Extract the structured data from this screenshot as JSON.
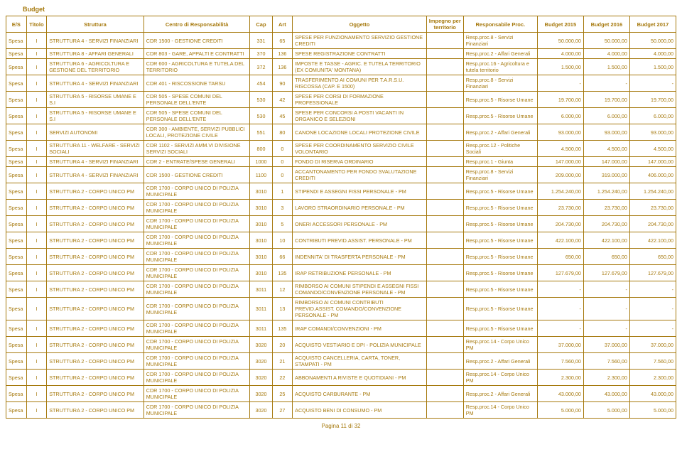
{
  "page_title": "Budget",
  "footer": "Pagina 11 di 32",
  "headers": [
    "E/S",
    "Titolo",
    "Struttura",
    "Centro di Responsabilità",
    "Cap",
    "Art",
    "Oggetto",
    "Impegno per territorio",
    "Responsabile Proc.",
    "Budget 2015",
    "Budget 2016",
    "Budget 2017"
  ],
  "rows": [
    {
      "es": "Spesa",
      "titolo": "I",
      "struttura": "STRUTTURA 4 - SERVIZI FINANZIARI",
      "centro": "CDR 1500 - GESTIONE CREDITI",
      "cap": "331",
      "art": "65",
      "oggetto": "SPESE PER FUNZIONAMENTO SERVIZIO GESTIONE CREDITI",
      "imp": "",
      "resp": "Resp.proc.8 - Servizi Finanziari",
      "b2015": "50.000,00",
      "b2016": "50.000,00",
      "b2017": "50.000,00"
    },
    {
      "es": "Spesa",
      "titolo": "I",
      "struttura": "STRUTTURA 8 - AFFARI GENERALI",
      "centro": "CDR 803 - GARE, APPALTI E CONTRATTI",
      "cap": "370",
      "art": "136",
      "oggetto": "SPESE REGISTRAZIONE CONTRATTI",
      "imp": "",
      "resp": "Resp.proc.2 - Affari Generali",
      "b2015": "4.000,00",
      "b2016": "4.000,00",
      "b2017": "4.000,00"
    },
    {
      "es": "Spesa",
      "titolo": "I",
      "struttura": "STRUTTURA 6 - AGRICOLTURA E GESTIONE DEL TERRITORIO",
      "centro": "CDR 600 - AGRICOLTURA E TUTELA DEL TERRITORIO",
      "cap": "372",
      "art": "136",
      "oggetto": "IMPOSTE E TASSE - AGRIC. E TUTELA TERRITORIO (EX COMUNITA' MONTANA)",
      "imp": "",
      "resp": "Resp.proc.16 - Agricoltura e tutela territorio",
      "b2015": "1.500,00",
      "b2016": "1.500,00",
      "b2017": "1.500,00"
    },
    {
      "es": "Spesa",
      "titolo": "I",
      "struttura": "STRUTTURA 4 - SERVIZI FINANZIARI",
      "centro": "CDR 401 - RISCOSSIONE TARSU",
      "cap": "454",
      "art": "90",
      "oggetto": "TRASFERIMENTO AI COMUNI PER T.A.R.S.U. RISCOSSA (CAP. E 1500)",
      "imp": "",
      "resp": "Resp.proc.8 - Servizi Finanziari",
      "b2015": "-",
      "b2016": "-",
      "b2017": "-"
    },
    {
      "es": "Spesa",
      "titolo": "I",
      "struttura": "STRUTTURA 5 - RISORSE UMANE E S.I",
      "centro": "CDR 505 - SPESE COMUNI DEL PERSONALE DELL'ENTE",
      "cap": "530",
      "art": "42",
      "oggetto": "SPESE PER CORSI DI FORMAZIONE PROFESSIONALE",
      "imp": "",
      "resp": "Resp.proc.5 - Risorse Umane",
      "b2015": "19.700,00",
      "b2016": "19.700,00",
      "b2017": "19.700,00"
    },
    {
      "es": "Spesa",
      "titolo": "I",
      "struttura": "STRUTTURA 5 - RISORSE UMANE E S.I",
      "centro": "CDR 505 - SPESE COMUNI DEL PERSONALE DELL'ENTE",
      "cap": "530",
      "art": "45",
      "oggetto": "SPESE PER CONCORSI A POSTI VACANTI IN ORGANICO E SELEZIONI",
      "imp": "",
      "resp": "Resp.proc.5 - Risorse Umane",
      "b2015": "6.000,00",
      "b2016": "6.000,00",
      "b2017": "6.000,00"
    },
    {
      "es": "Spesa",
      "titolo": "I",
      "struttura": "SERVIZI AUTONOMI",
      "centro": "CDR 300 - AMBIENTE, SERVIZI PUBBLICI LOCALI, PROTEZIONE CIVILE",
      "cap": "551",
      "art": "80",
      "oggetto": "CANONE LOCAZIONE LOCALI PROTEZIONE CIVILE",
      "imp": "",
      "resp": "Resp.proc.2 - Affari Generali",
      "b2015": "93.000,00",
      "b2016": "93.000,00",
      "b2017": "93.000,00"
    },
    {
      "es": "Spesa",
      "titolo": "I",
      "struttura": "STRUTTURA 11 - WELFARE - SERVIZI SOCIALI",
      "centro": "CDR 1102 - SERVIZI AMM.VI DIVISIONE SERVIZI SOCIALI",
      "cap": "800",
      "art": "0",
      "oggetto": "SPESE PER COORDINAMENTO SERVIZIO CIVILE VOLONTARIO",
      "imp": "",
      "resp": "Resp.proc.12 - Politiche Sociali",
      "b2015": "4.500,00",
      "b2016": "4.500,00",
      "b2017": "4.500,00"
    },
    {
      "es": "Spesa",
      "titolo": "I",
      "struttura": "STRUTTURA 4 - SERVIZI FINANZIARI",
      "centro": "CDR 2 - ENTRATE/SPESE GENERALI",
      "cap": "1000",
      "art": "0",
      "oggetto": "FONDO DI RISERVA ORDINARIO",
      "imp": "",
      "resp": "Resp.proc.1 - Giunta",
      "b2015": "147.000,00",
      "b2016": "147.000,00",
      "b2017": "147.000,00"
    },
    {
      "es": "Spesa",
      "titolo": "I",
      "struttura": "STRUTTURA 4 - SERVIZI FINANZIARI",
      "centro": "CDR 1500 - GESTIONE CREDITI",
      "cap": "1100",
      "art": "0",
      "oggetto": "ACCANTONAMENTO PER FONDO SVALUTAZIONE CREDITI",
      "imp": "",
      "resp": "Resp.proc.8 - Servizi Finanziari",
      "b2015": "209.000,00",
      "b2016": "319.000,00",
      "b2017": "406.000,00"
    },
    {
      "es": "Spesa",
      "titolo": "I",
      "struttura": "STRUTTURA 2 - CORPO UNICO PM",
      "centro": "CDR 1700 - CORPO UNICO DI POLIZIA MUNICIPALE",
      "cap": "3010",
      "art": "1",
      "oggetto": "STIPENDI E ASSEGNI FISSI PERSONALE - PM",
      "imp": "",
      "resp": "Resp.proc.5 - Risorse Umane",
      "b2015": "1.254.240,00",
      "b2016": "1.254.240,00",
      "b2017": "1.254.240,00"
    },
    {
      "es": "Spesa",
      "titolo": "I",
      "struttura": "STRUTTURA 2 - CORPO UNICO PM",
      "centro": "CDR 1700 - CORPO UNICO DI POLIZIA MUNICIPALE",
      "cap": "3010",
      "art": "3",
      "oggetto": "LAVORO STRAORDINARIO PERSONALE - PM",
      "imp": "",
      "resp": "Resp.proc.5 - Risorse Umane",
      "b2015": "23.730,00",
      "b2016": "23.730,00",
      "b2017": "23.730,00"
    },
    {
      "es": "Spesa",
      "titolo": "I",
      "struttura": "STRUTTURA 2 - CORPO UNICO PM",
      "centro": "CDR 1700 - CORPO UNICO DI POLIZIA MUNICIPALE",
      "cap": "3010",
      "art": "5",
      "oggetto": "ONERI ACCESSORI PERSONALE - PM",
      "imp": "",
      "resp": "Resp.proc.5 - Risorse Umane",
      "b2015": "204.730,00",
      "b2016": "204.730,00",
      "b2017": "204.730,00"
    },
    {
      "es": "Spesa",
      "titolo": "I",
      "struttura": "STRUTTURA 2 - CORPO UNICO PM",
      "centro": "CDR 1700 - CORPO UNICO DI POLIZIA MUNICIPALE",
      "cap": "3010",
      "art": "10",
      "oggetto": "CONTRIBUTI PREVID.ASSIST. PERSONALE - PM",
      "imp": "",
      "resp": "Resp.proc.5 - Risorse Umane",
      "b2015": "422.100,00",
      "b2016": "422.100,00",
      "b2017": "422.100,00"
    },
    {
      "es": "Spesa",
      "titolo": "I",
      "struttura": "STRUTTURA 2 - CORPO UNICO PM",
      "centro": "CDR 1700 - CORPO UNICO DI POLIZIA MUNICIPALE",
      "cap": "3010",
      "art": "66",
      "oggetto": "INDENNITA' DI TRASFERTA PERSONALE - PM",
      "imp": "",
      "resp": "Resp.proc.5 - Risorse Umane",
      "b2015": "650,00",
      "b2016": "650,00",
      "b2017": "650,00"
    },
    {
      "es": "Spesa",
      "titolo": "I",
      "struttura": "STRUTTURA 2 - CORPO UNICO PM",
      "centro": "CDR 1700 - CORPO UNICO DI POLIZIA MUNICIPALE",
      "cap": "3010",
      "art": "135",
      "oggetto": "IRAP RETRIBUZIONE PERSONALE - PM",
      "imp": "",
      "resp": "Resp.proc.5 - Risorse Umane",
      "b2015": "127.679,00",
      "b2016": "127.679,00",
      "b2017": "127.679,00"
    },
    {
      "es": "Spesa",
      "titolo": "I",
      "struttura": "STRUTTURA 2 - CORPO UNICO PM",
      "centro": "CDR 1700 - CORPO UNICO DI POLIZIA MUNICIPALE",
      "cap": "3011",
      "art": "12",
      "oggetto": "RIMBORSO AI COMUNI STIPENDI E ASSEGNI FISSI COMANDO/CONVENZIONE PERSONALE - PM",
      "imp": "",
      "resp": "Resp.proc.5 - Risorse Umane",
      "b2015": "-",
      "b2016": "-",
      "b2017": "-"
    },
    {
      "es": "Spesa",
      "titolo": "I",
      "struttura": "STRUTTURA 2 - CORPO UNICO PM",
      "centro": "CDR 1700 - CORPO UNICO DI POLIZIA MUNICIPALE",
      "cap": "3011",
      "art": "13",
      "oggetto": "RIMBORSO AI COMUNI CONTRIBUTI PREVID.ASSIST. COMANDO/CONVENZIONE PERSONALE - PM",
      "imp": "",
      "resp": "Resp.proc.5 - Risorse Umane",
      "b2015": "-",
      "b2016": "-",
      "b2017": "-"
    },
    {
      "es": "Spesa",
      "titolo": "I",
      "struttura": "STRUTTURA 2 - CORPO UNICO PM",
      "centro": "CDR 1700 - CORPO UNICO DI POLIZIA MUNICIPALE",
      "cap": "3011",
      "art": "135",
      "oggetto": "IRAP COMANDI/CONVENZIONI - PM",
      "imp": "",
      "resp": "Resp.proc.5 - Risorse Umane",
      "b2015": "-",
      "b2016": "-",
      "b2017": "-"
    },
    {
      "es": "Spesa",
      "titolo": "I",
      "struttura": "STRUTTURA 2 - CORPO UNICO PM",
      "centro": "CDR 1700 - CORPO UNICO DI POLIZIA MUNICIPALE",
      "cap": "3020",
      "art": "20",
      "oggetto": "ACQUISTO VESTIARIO E DPI - POLIZIA MUNICIPALE",
      "imp": "",
      "resp": "Resp.proc.14 - Corpo Unico PM",
      "b2015": "37.000,00",
      "b2016": "37.000,00",
      "b2017": "37.000,00"
    },
    {
      "es": "Spesa",
      "titolo": "I",
      "struttura": "STRUTTURA 2 - CORPO UNICO PM",
      "centro": "CDR 1700 - CORPO UNICO DI POLIZIA MUNICIPALE",
      "cap": "3020",
      "art": "21",
      "oggetto": "ACQUISTO CANCELLERIA, CARTA, TONER, STAMPATI - PM",
      "imp": "",
      "resp": "Resp.proc.2 - Affari Generali",
      "b2015": "7.560,00",
      "b2016": "7.560,00",
      "b2017": "7.560,00"
    },
    {
      "es": "Spesa",
      "titolo": "I",
      "struttura": "STRUTTURA 2 - CORPO UNICO PM",
      "centro": "CDR 1700 - CORPO UNICO DI POLIZIA MUNICIPALE",
      "cap": "3020",
      "art": "22",
      "oggetto": "ABBONAMENTI A RIVISTE E QUOTIDIANI - PM",
      "imp": "",
      "resp": "Resp.proc.14 - Corpo Unico PM",
      "b2015": "2.300,00",
      "b2016": "2.300,00",
      "b2017": "2.300,00"
    },
    {
      "es": "Spesa",
      "titolo": "I",
      "struttura": "STRUTTURA 2 - CORPO UNICO PM",
      "centro": "CDR 1700 - CORPO UNICO DI POLIZIA MUNICIPALE",
      "cap": "3020",
      "art": "25",
      "oggetto": "ACQUISTO CARBURANTE - PM",
      "imp": "",
      "resp": "Resp.proc.2 - Affari Generali",
      "b2015": "43.000,00",
      "b2016": "43.000,00",
      "b2017": "43.000,00"
    },
    {
      "es": "Spesa",
      "titolo": "I",
      "struttura": "STRUTTURA 2 - CORPO UNICO PM",
      "centro": "CDR 1700 - CORPO UNICO DI POLIZIA MUNICIPALE",
      "cap": "3020",
      "art": "27",
      "oggetto": "ACQUISTO BENI DI CONSUMO - PM",
      "imp": "",
      "resp": "Resp.proc.14 - Corpo Unico PM",
      "b2015": "5.000,00",
      "b2016": "5.000,00",
      "b2017": "5.000,00"
    }
  ]
}
